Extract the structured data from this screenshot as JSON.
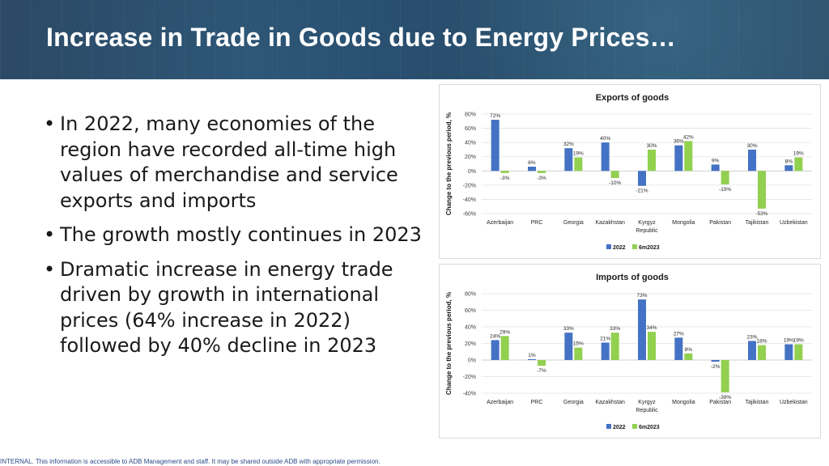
{
  "title": "Increase in Trade in Goods due to Energy Prices…",
  "bullets": [
    "In 2022, many economies of the region have recorded all-time high values of merchandise and service exports and imports",
    "The growth mostly continues in 2023",
    "Dramatic increase in energy trade driven by growth in international prices (64% increase in 2022) followed by 40% decline in 2023"
  ],
  "footer": "INTERNAL. This information is accessible to ADB Management and staff. It may be shared outside ADB with appropriate permission.",
  "colors": {
    "series_2022": "#4472c4",
    "series_6m2023": "#92d050",
    "header_bg": "#274b6b"
  },
  "chart_data": [
    {
      "type": "bar",
      "title": "Exports of goods",
      "ylabel": "Change to the previous period, %",
      "xlabel": "",
      "ylim": [
        -60,
        80
      ],
      "yticks": [
        "80%",
        "60%",
        "40%",
        "20%",
        "0%",
        "-20%",
        "-40%",
        "-60%"
      ],
      "ytick_values": [
        80,
        60,
        40,
        20,
        0,
        -20,
        -40,
        -60
      ],
      "categories": [
        "Azerbaijan",
        "PRC",
        "Georgia",
        "Kazakhstan",
        "Kyrgyz Republic",
        "Mongolia",
        "Pakistan",
        "Tajikistan",
        "Uzbekistan"
      ],
      "series": [
        {
          "name": "2022",
          "values": [
            72,
            6,
            32,
            40,
            -21,
            36,
            9,
            30,
            8
          ]
        },
        {
          "name": "6m2023",
          "values": [
            -3,
            -3,
            19,
            -10,
            30,
            42,
            -19,
            -53,
            19
          ]
        }
      ],
      "grid": true,
      "legend": "bottom"
    },
    {
      "type": "bar",
      "title": "Imports of goods",
      "ylabel": "Change to the previous period, %",
      "xlabel": "",
      "ylim": [
        -40,
        80
      ],
      "yticks": [
        "80%",
        "60%",
        "40%",
        "20%",
        "0%",
        "-20%",
        "-40%"
      ],
      "ytick_values": [
        80,
        60,
        40,
        20,
        0,
        -20,
        -40
      ],
      "categories": [
        "Azerbaijan",
        "PRC",
        "Georgia",
        "Kazakhstan",
        "Kyrgyz Republic",
        "Mongolia",
        "Pakistan",
        "Tajikistan",
        "Uzbekistan"
      ],
      "series": [
        {
          "name": "2022",
          "values": [
            24,
            1,
            33,
            21,
            73,
            27,
            -2,
            23,
            19
          ]
        },
        {
          "name": "6m2023",
          "values": [
            29,
            -7,
            15,
            33,
            34,
            8,
            -39,
            18,
            19
          ]
        }
      ],
      "grid": true,
      "legend": "bottom"
    }
  ]
}
